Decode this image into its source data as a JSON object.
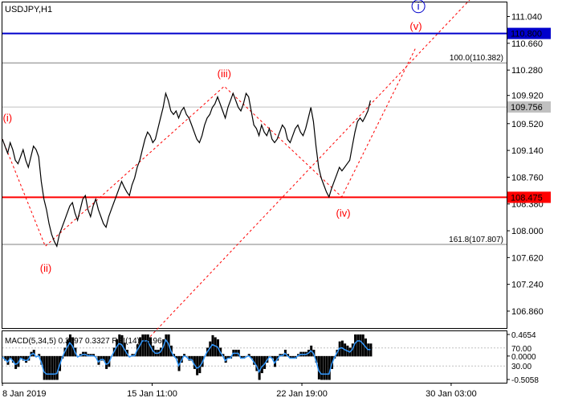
{
  "chart_data": {
    "type": "line",
    "symbol_label": "USDJPY,H1",
    "y_ticks": [
      "111.040",
      "110.660",
      "110.280",
      "109.920",
      "109.520",
      "109.140",
      "108.760",
      "108.380",
      "108.000",
      "107.620",
      "107.240",
      "106.860"
    ],
    "y_tick_values": [
      111.04,
      110.66,
      110.28,
      109.92,
      109.52,
      109.14,
      108.76,
      108.38,
      108.0,
      107.62,
      107.24,
      106.86
    ],
    "ylim": [
      106.62,
      111.24
    ],
    "x_ticks": [
      "8 Jan 2019",
      "15 Jan 11:00",
      "22 Jan 19:00",
      "30 Jan 03:00"
    ],
    "x_tick_positions": [
      0,
      0.297,
      0.594,
      0.89
    ],
    "series": [
      {
        "values": [
          109.3,
          109.2,
          109.1,
          109.25,
          109.15,
          109.0,
          108.95,
          109.05,
          109.15,
          109.0,
          108.9,
          109.05,
          109.2,
          109.15,
          109.05,
          108.7,
          108.45,
          108.3,
          108.1,
          107.95,
          107.85,
          107.78,
          107.95,
          108.05,
          108.15,
          108.25,
          108.35,
          108.4,
          108.25,
          108.15,
          108.3,
          108.45,
          108.5,
          108.3,
          108.2,
          108.35,
          108.45,
          108.3,
          108.2,
          108.1,
          108.05,
          108.2,
          108.3,
          108.4,
          108.5,
          108.6,
          108.7,
          108.62,
          108.55,
          108.5,
          108.65,
          108.75,
          108.9,
          109.0,
          109.15,
          109.3,
          109.4,
          109.35,
          109.25,
          109.3,
          109.45,
          109.6,
          109.75,
          109.95,
          109.85,
          109.7,
          109.65,
          109.7,
          109.6,
          109.7,
          109.75,
          109.65,
          109.6,
          109.5,
          109.4,
          109.3,
          109.25,
          109.35,
          109.5,
          109.6,
          109.65,
          109.75,
          109.8,
          109.9,
          109.8,
          109.7,
          109.6,
          109.75,
          109.85,
          109.95,
          109.85,
          109.75,
          109.7,
          109.8,
          109.95,
          109.9,
          109.7,
          109.5,
          109.45,
          109.35,
          109.5,
          109.4,
          109.35,
          109.45,
          109.3,
          109.25,
          109.3,
          109.4,
          109.5,
          109.45,
          109.3,
          109.25,
          109.35,
          109.45,
          109.5,
          109.4,
          109.35,
          109.45,
          109.6,
          109.75,
          109.55,
          109.2,
          108.9,
          108.75,
          108.65,
          108.55,
          108.48,
          108.6,
          108.7,
          108.8,
          108.9,
          108.85,
          108.9,
          108.95,
          109.0,
          109.2,
          109.4,
          109.55,
          109.6,
          109.55,
          109.62,
          109.7,
          109.85
        ],
        "color": "#000000"
      }
    ],
    "horizontal_lines": [
      {
        "value": 110.8,
        "label": "110.800",
        "color": "#0000cc",
        "label_bg": "#0000cc",
        "label_color": "#ffffff"
      },
      {
        "value": 110.382,
        "label": "100.0(110.382)",
        "color": "#808080",
        "label_color": "#808080"
      },
      {
        "value": 109.756,
        "label": "109.756",
        "color": "#c0c0c0",
        "label_bg": "#c0c0c0",
        "label_color": "#ffffff"
      },
      {
        "value": 108.475,
        "label": "108.475",
        "color": "#ff0000",
        "label_bg": "#ff0000",
        "label_color": "#ffffff"
      },
      {
        "value": 107.807,
        "label": "161.8(107.807)",
        "color": "#808080",
        "label_color": "#808080"
      }
    ],
    "wave_labels": [
      {
        "label": "(i)",
        "x": 0.01,
        "y": 109.55,
        "color": "#ff0000"
      },
      {
        "label": "(ii)",
        "x": 0.086,
        "y": 107.42,
        "color": "#ff0000"
      },
      {
        "label": "(iii)",
        "x": 0.44,
        "y": 110.18,
        "color": "#ff0000"
      },
      {
        "label": "(iv)",
        "x": 0.676,
        "y": 108.2,
        "color": "#ff0000"
      },
      {
        "label": "(v)",
        "x": 0.82,
        "y": 110.85,
        "color": "#ff0000"
      },
      {
        "label": "i",
        "x": 0.825,
        "y": 111.14,
        "color": "#0000cc",
        "circled": true
      }
    ],
    "indicator": {
      "label": "MACD(5,34,5) 0.3697 0.3327 RSI(14) 78.96",
      "macd_ticks": [
        "0.4654",
        "0.0000",
        "-0.5058"
      ],
      "macd_values": [
        0.4654,
        0.0,
        -0.5058
      ],
      "rsi_ticks": [
        "70.00",
        "30.00"
      ],
      "rsi_values": [
        70,
        30
      ]
    },
    "colors": {
      "axis": "#000000",
      "grid": "#c0c0c0",
      "price": "#000000",
      "rsi": "#3399ff",
      "macd_hist": "#000000",
      "projection": "#ff0000"
    }
  }
}
